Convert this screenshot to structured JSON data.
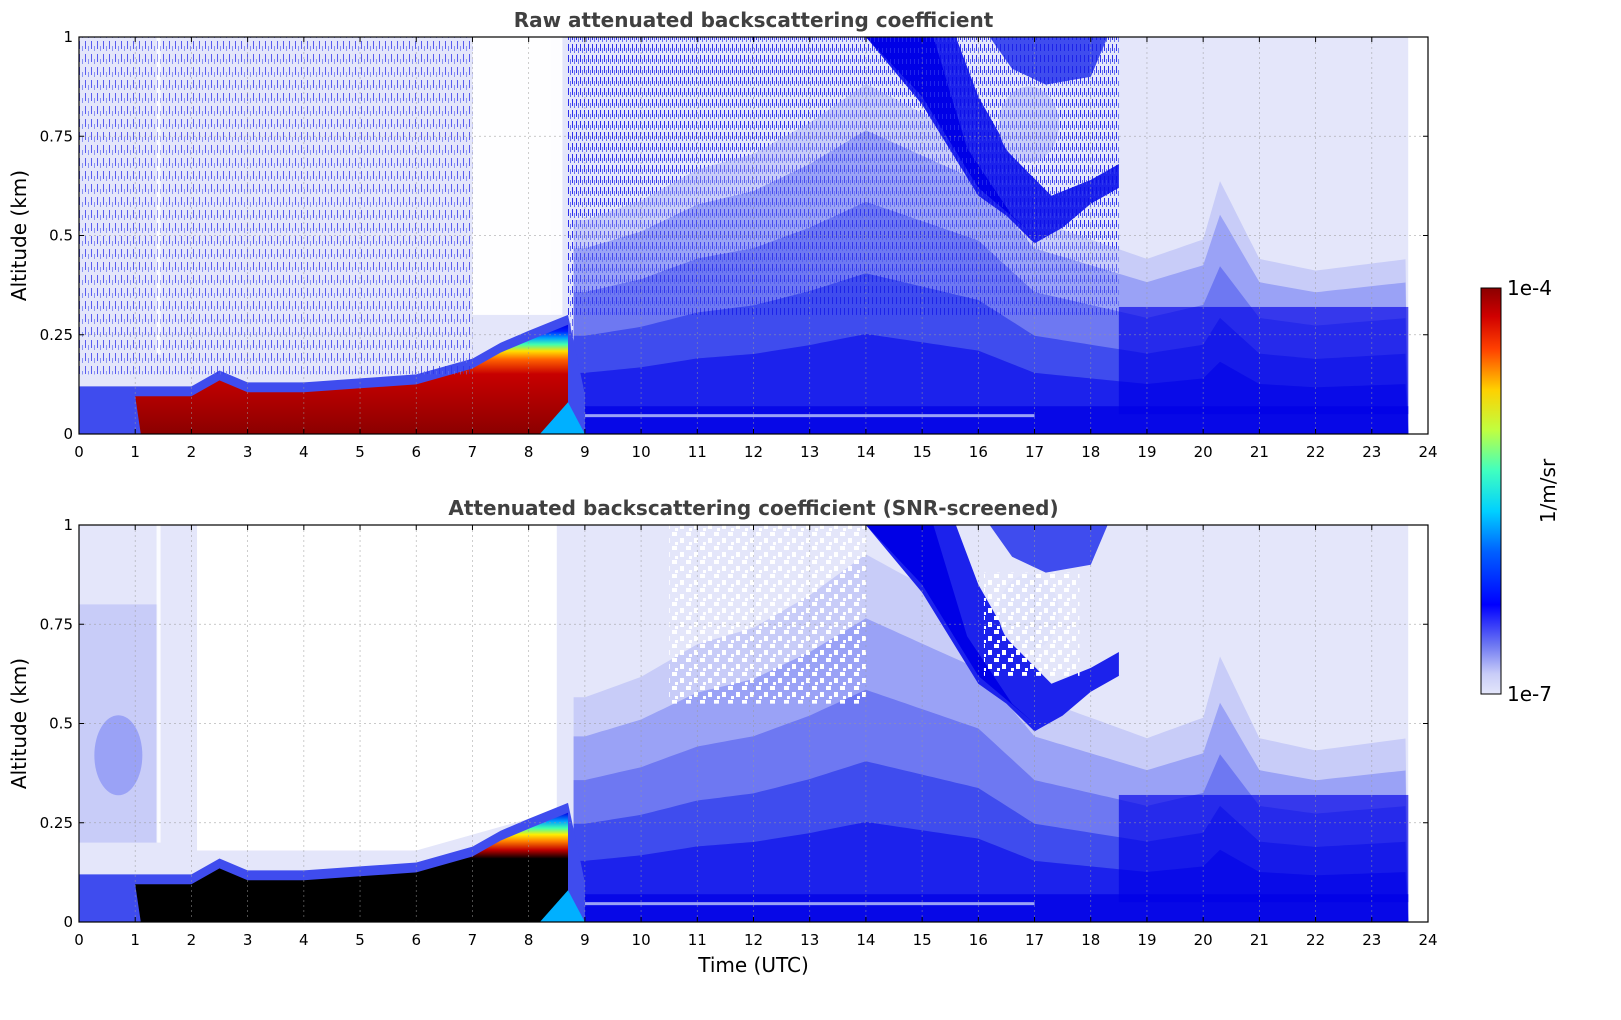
{
  "colors": {
    "background_clear": "#e4e6fa",
    "levels": [
      "#e4e6fa",
      "#c8ccf8",
      "#9aa2f6",
      "#6e78f2",
      "#3f4cee",
      "#1c22ec",
      "#0000e6"
    ],
    "jet_low": "#0000ff",
    "jet_high": "#8b0000",
    "saturated": "#000000"
  },
  "colorbar": {
    "max_label": "1e-4",
    "min_label": "1e-7",
    "unit_label": "1/m/sr",
    "scale": "log",
    "vmin": 1e-07,
    "vmax": 0.0001
  },
  "chart_data": [
    {
      "type": "heatmap",
      "title": "Raw attenuated backscattering coefficient",
      "xlabel": "",
      "ylabel": "Altitude (km)",
      "xlim": [
        0,
        24
      ],
      "ylim": [
        0,
        1
      ],
      "x_ticks": [
        "0",
        "1",
        "2",
        "3",
        "4",
        "5",
        "6",
        "7",
        "8",
        "9",
        "10",
        "11",
        "12",
        "13",
        "14",
        "15",
        "16",
        "17",
        "18",
        "19",
        "20",
        "21",
        "22",
        "23",
        "24"
      ],
      "y_ticks": [
        "0",
        "0.25",
        "0.5",
        "0.75",
        "1"
      ],
      "grid": true,
      "data_end_hour": 23.65,
      "boundary_layer_top_km": [
        [
          0,
          0.1
        ],
        [
          1,
          0.1
        ],
        [
          2,
          0.1
        ],
        [
          2.5,
          0.14
        ],
        [
          3,
          0.11
        ],
        [
          4,
          0.11
        ],
        [
          5,
          0.12
        ],
        [
          6,
          0.13
        ],
        [
          7,
          0.17
        ],
        [
          7.5,
          0.21
        ],
        [
          8,
          0.24
        ],
        [
          8.7,
          0.28
        ]
      ],
      "cloud_bottom_km": [
        [
          14,
          1.0
        ],
        [
          15,
          0.83
        ],
        [
          16,
          0.6
        ],
        [
          16.5,
          0.55
        ],
        [
          17,
          0.48
        ],
        [
          17.5,
          0.52
        ],
        [
          18,
          0.58
        ],
        [
          18.5,
          0.62
        ]
      ]
    },
    {
      "type": "heatmap",
      "title": "Attenuated backscattering coefficient (SNR-screened)",
      "xlabel": "Time (UTC)",
      "ylabel": "Altitude (km)",
      "xlim": [
        0,
        24
      ],
      "ylim": [
        0,
        1
      ],
      "x_ticks": [
        "0",
        "1",
        "2",
        "3",
        "4",
        "5",
        "6",
        "7",
        "8",
        "9",
        "10",
        "11",
        "12",
        "13",
        "14",
        "15",
        "16",
        "17",
        "18",
        "19",
        "20",
        "21",
        "22",
        "23",
        "24"
      ],
      "y_ticks": [
        "0",
        "0.25",
        "0.5",
        "0.75",
        "1"
      ],
      "grid": true,
      "data_end_hour": 23.65,
      "boundary_layer_top_km": [
        [
          0,
          0.1
        ],
        [
          1,
          0.1
        ],
        [
          2,
          0.1
        ],
        [
          2.5,
          0.14
        ],
        [
          3,
          0.11
        ],
        [
          4,
          0.11
        ],
        [
          5,
          0.12
        ],
        [
          6,
          0.13
        ],
        [
          7,
          0.17
        ],
        [
          7.5,
          0.21
        ],
        [
          8,
          0.24
        ],
        [
          8.7,
          0.28
        ]
      ],
      "cloud_bottom_km": [
        [
          14,
          1.0
        ],
        [
          15,
          0.83
        ],
        [
          16,
          0.6
        ],
        [
          16.5,
          0.55
        ],
        [
          17,
          0.48
        ],
        [
          17.5,
          0.52
        ],
        [
          18,
          0.58
        ],
        [
          18.5,
          0.62
        ]
      ]
    }
  ]
}
